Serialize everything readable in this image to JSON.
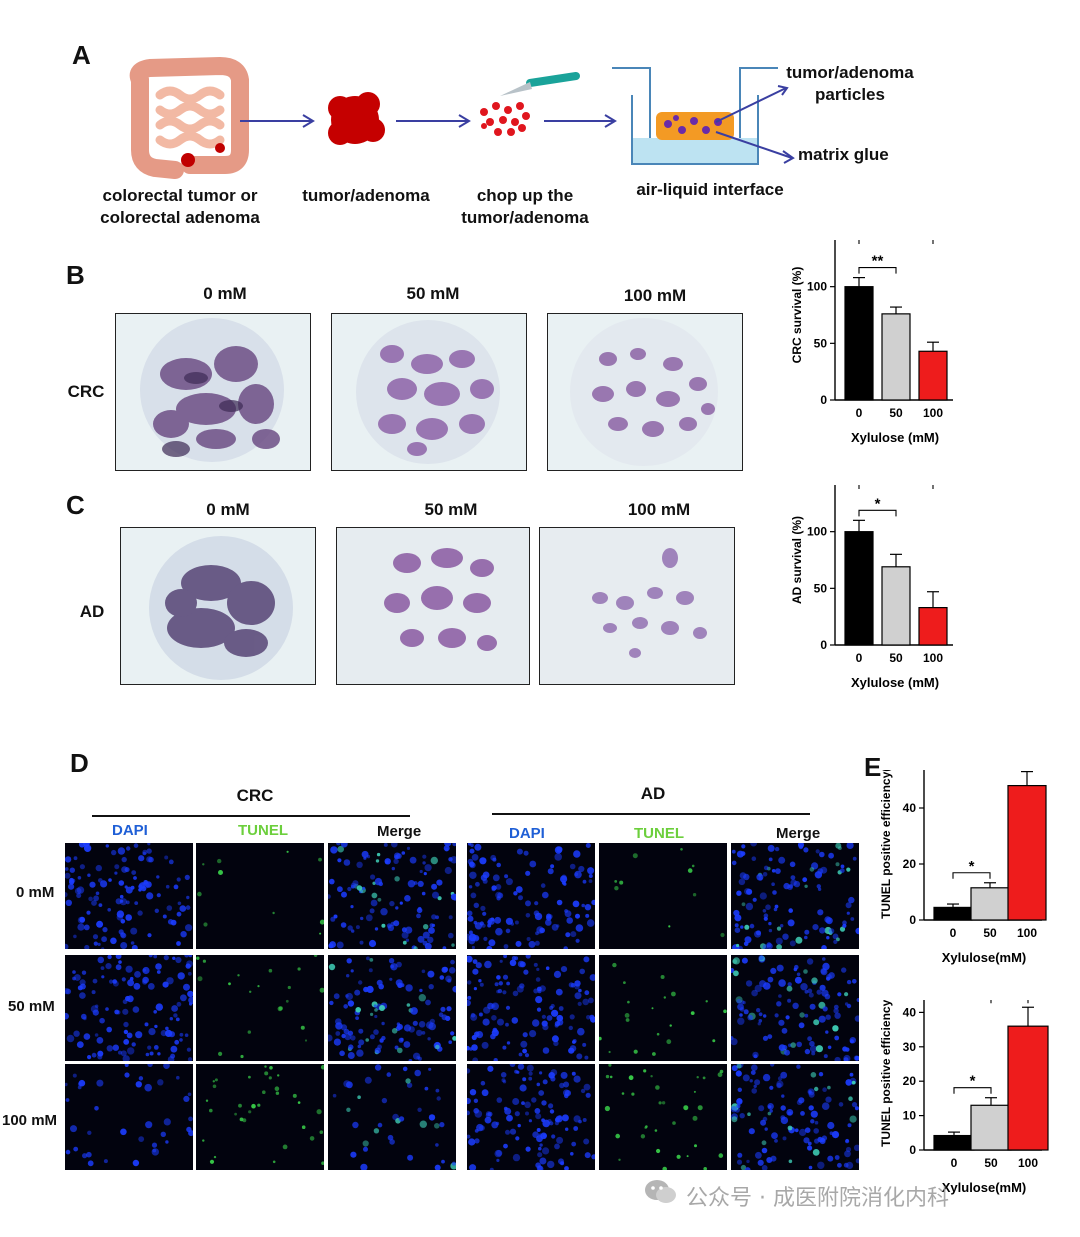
{
  "panels": {
    "a": "A",
    "b": "B",
    "c": "C",
    "d": "D",
    "e": "E"
  },
  "schematic": {
    "steps": [
      "colorectal tumor or",
      "colorectal adenoma",
      "tumor/adenoma",
      "chop up the",
      "tumor/adenoma",
      "air-liquid interface"
    ],
    "labels": {
      "particles_1": "tumor/adenoma",
      "particles_2": "particles",
      "matrix": "matrix glue"
    }
  },
  "microscopy": {
    "doses_b": [
      "0 mM",
      "50 mM",
      "100 mM"
    ],
    "doses_c": [
      "0 mM",
      "50 mM",
      "100 mM"
    ],
    "row_crc": "CRC",
    "row_ad": "AD"
  },
  "fluorescence": {
    "group_crc": "CRC",
    "group_ad": "AD",
    "channels": [
      "DAPI",
      "TUNEL",
      "Merge"
    ],
    "rows": [
      "0 mM",
      "50 mM",
      "100 mM"
    ],
    "colors": {
      "dapi": "#1f5fd6",
      "tunel": "#6ccf3c",
      "merge": "#111111"
    }
  },
  "watermark": "公众号 · 成医附院消化内科",
  "chart_data": [
    {
      "id": "crc-survival",
      "type": "bar",
      "categories": [
        "0",
        "50",
        "100"
      ],
      "values": [
        100,
        76,
        43
      ],
      "errors": [
        8,
        6,
        8
      ],
      "colors": [
        "#000000",
        "#d0d0d0",
        "#ee1c1c"
      ],
      "ylabel": "CRC survival (%)",
      "xlabel": "Xylulose (mM)",
      "ylim": [
        0,
        150
      ],
      "yticks": [
        "0",
        "50",
        "100",
        "150"
      ],
      "significance": [
        {
          "from": 0,
          "to": 1,
          "label": "**"
        },
        {
          "from": 0,
          "to": 2,
          "label": "****"
        }
      ]
    },
    {
      "id": "ad-survival",
      "type": "bar",
      "categories": [
        "0",
        "50",
        "100"
      ],
      "values": [
        100,
        69,
        33
      ],
      "errors": [
        10,
        11,
        14
      ],
      "colors": [
        "#000000",
        "#d0d0d0",
        "#ee1c1c"
      ],
      "ylabel": "AD survival (%)",
      "xlabel": "Xylulose (mM)",
      "ylim": [
        0,
        150
      ],
      "yticks": [
        "0",
        "50",
        "100",
        "150"
      ],
      "significance": [
        {
          "from": 0,
          "to": 1,
          "label": "*"
        },
        {
          "from": 0,
          "to": 2,
          "label": "***"
        }
      ]
    },
    {
      "id": "crc-tunel",
      "type": "bar",
      "title": "CRC",
      "categories": [
        "0",
        "50",
        "100"
      ],
      "values": [
        4.5,
        11.5,
        48
      ],
      "errors": [
        1.2,
        1.8,
        5
      ],
      "colors": [
        "#000000",
        "#d0d0d0",
        "#ee1c1c"
      ],
      "ylabel": "TUNEL positive efficiency(%)",
      "xlabel": "Xylulose(mM)",
      "ylim": [
        0,
        60
      ],
      "yticks": [
        "0",
        "20",
        "40",
        "60"
      ],
      "significance": [
        {
          "from": 0,
          "to": 1,
          "label": "*"
        },
        {
          "from": 1,
          "to": 2,
          "label": "****"
        },
        {
          "from": 0,
          "to": 2,
          "label": "****"
        }
      ]
    },
    {
      "id": "ad-tunel",
      "type": "bar",
      "title": "AD",
      "categories": [
        "0",
        "50",
        "100"
      ],
      "values": [
        4.2,
        13,
        36
      ],
      "errors": [
        1,
        2.2,
        5.5
      ],
      "colors": [
        "#000000",
        "#d0d0d0",
        "#ee1c1c"
      ],
      "ylabel": "TUNEL positive efficiency(%)",
      "xlabel": "Xylulose(mM)",
      "ylim": [
        0,
        50
      ],
      "yticks": [
        "0",
        "10",
        "20",
        "30",
        "40",
        "50"
      ],
      "significance": [
        {
          "from": 0,
          "to": 1,
          "label": "*"
        },
        {
          "from": 1,
          "to": 2,
          "label": "****"
        },
        {
          "from": 0,
          "to": 2,
          "label": "****"
        }
      ]
    }
  ]
}
